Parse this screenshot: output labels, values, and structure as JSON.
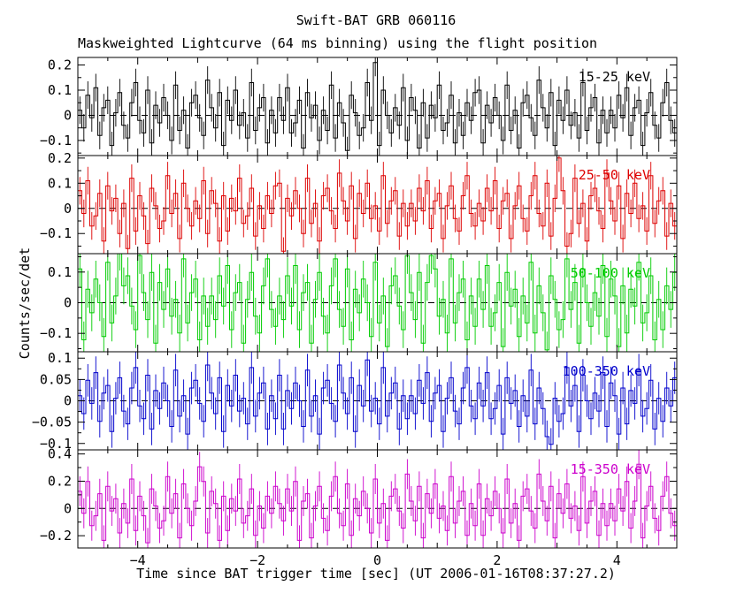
{
  "chart_data": {
    "type": "line",
    "style": "step-histogram-with-errorbars",
    "title": "Swift-BAT GRB 060116",
    "subtitle": "Maskweighted Lightcurve (64 ms binning) using the flight position",
    "xlabel": "Time since BAT trigger time [sec] (UT 2006-01-16T08:37:27.2)",
    "ylabel": "Counts/sec/det",
    "x_range": [
      -5,
      5
    ],
    "bin_seconds": 0.064,
    "x_major_ticks": [
      -4,
      -2,
      0,
      2,
      4
    ],
    "x_minor_step": 0.5,
    "grid": false,
    "legend_position": "inside-right-per-panel",
    "panels": [
      {
        "label": "15-25 keV",
        "color": "#000000",
        "value_scale": 0.01,
        "err": 0.055,
        "ylim": [
          -0.16,
          0.23
        ],
        "yticks": [
          0.2,
          0.1,
          0,
          -0.1
        ],
        "values": [
          2,
          -5,
          8,
          -1,
          11,
          -8,
          3,
          6,
          -12,
          1,
          9,
          -4,
          -9,
          5,
          13,
          -2,
          -7,
          10,
          -11,
          4,
          -3,
          7,
          0,
          -10,
          12,
          -6,
          2,
          -13,
          5,
          8,
          -1,
          -8,
          14,
          3,
          -5,
          9,
          -12,
          6,
          -2,
          10,
          -4,
          1,
          -9,
          13,
          -6,
          3,
          7,
          -11,
          2,
          -7,
          7,
          -2,
          11,
          -7,
          -3,
          6,
          -13,
          9,
          -1,
          4,
          -10,
          2,
          -6,
          12,
          -9,
          5,
          -3,
          -14,
          8,
          1,
          -8,
          -5,
          13,
          -2,
          21,
          -12,
          10,
          0,
          -7,
          3,
          -4,
          11,
          -10,
          7,
          2,
          -13,
          5,
          -9,
          4,
          -1,
          12,
          -6,
          -3,
          8,
          -11,
          1,
          -8,
          5,
          -2,
          9,
          10,
          -11,
          4,
          -3,
          7,
          0,
          -10,
          12,
          -6,
          2,
          -13,
          5,
          8,
          -1,
          -8,
          14,
          3,
          -5,
          9,
          -12,
          6,
          -2,
          10,
          -4,
          1,
          -9,
          13,
          -6,
          3,
          7,
          -11,
          2,
          -7,
          2,
          -5,
          8,
          -1,
          11,
          -8,
          3,
          6,
          -12,
          1,
          9,
          -4,
          -9,
          5,
          13,
          -2,
          -7
        ]
      },
      {
        "label": "25-50 keV",
        "color": "#dd0000",
        "value_scale": 0.01,
        "err": 0.055,
        "ylim": [
          -0.18,
          0.21
        ],
        "yticks": [
          0.2,
          0.1,
          0,
          -0.1
        ],
        "values": [
          7,
          -2,
          11,
          -7,
          -3,
          6,
          -13,
          9,
          -1,
          4,
          -10,
          2,
          -16,
          12,
          -9,
          5,
          -3,
          -14,
          8,
          1,
          -8,
          -5,
          13,
          -2,
          6,
          -12,
          10,
          0,
          -7,
          3,
          -4,
          11,
          -10,
          7,
          2,
          -13,
          5,
          -9,
          4,
          -1,
          12,
          -6,
          -3,
          8,
          -11,
          1,
          -8,
          5,
          -2,
          9,
          10,
          -17,
          4,
          -3,
          7,
          0,
          -10,
          12,
          -6,
          2,
          -13,
          5,
          8,
          -1,
          -8,
          14,
          3,
          -5,
          9,
          -12,
          6,
          -2,
          10,
          -4,
          1,
          -9,
          13,
          -6,
          3,
          7,
          -11,
          2,
          -7,
          2,
          -5,
          8,
          -1,
          11,
          -8,
          3,
          6,
          -12,
          1,
          9,
          -4,
          -9,
          5,
          13,
          -2,
          -7,
          2,
          -5,
          8,
          -1,
          11,
          -8,
          3,
          6,
          -12,
          1,
          9,
          -4,
          -9,
          5,
          13,
          -2,
          -7,
          10,
          -11,
          4,
          20,
          7,
          -15,
          -10,
          12,
          -6,
          2,
          -13,
          5,
          8,
          -1,
          -8,
          14,
          3,
          -5,
          9,
          -12,
          6,
          -2,
          10,
          -4,
          1,
          -9,
          13,
          -6,
          3,
          7,
          -11,
          2,
          -7
        ]
      },
      {
        "label": "50-100 keV",
        "color": "#00cc00",
        "value_scale": 0.011,
        "err": 0.06,
        "ylim": [
          -0.16,
          0.16
        ],
        "yticks": [
          0.1,
          0,
          -0.1
        ],
        "values": [
          10,
          -11,
          4,
          -3,
          7,
          0,
          -10,
          12,
          -6,
          2,
          15,
          5,
          8,
          -1,
          -8,
          14,
          3,
          -5,
          9,
          -12,
          6,
          -2,
          10,
          -4,
          1,
          -9,
          13,
          -6,
          3,
          7,
          -11,
          2,
          -7,
          2,
          -5,
          8,
          -1,
          11,
          -8,
          3,
          6,
          -12,
          1,
          9,
          -4,
          -9,
          5,
          13,
          -2,
          -7,
          2,
          -5,
          8,
          -1,
          11,
          -8,
          3,
          6,
          -12,
          1,
          9,
          -4,
          -9,
          5,
          13,
          -2,
          -7,
          10,
          -11,
          4,
          -3,
          7,
          0,
          -10,
          12,
          -6,
          2,
          -13,
          5,
          8,
          -1,
          -8,
          14,
          3,
          -5,
          9,
          -12,
          6,
          14,
          10,
          -4,
          1,
          -9,
          13,
          -6,
          3,
          7,
          -11,
          2,
          -7,
          7,
          -2,
          11,
          -7,
          -3,
          6,
          -13,
          9,
          -1,
          4,
          -10,
          2,
          -6,
          12,
          -9,
          5,
          -3,
          -14,
          8,
          1,
          -8,
          -5,
          13,
          -2,
          6,
          -12,
          10,
          0,
          -7,
          3,
          -4,
          11,
          -10,
          7,
          2,
          -13,
          5,
          -9,
          4,
          -1,
          12,
          -6,
          -3,
          8,
          -11,
          1,
          -8,
          5,
          -2,
          9
        ]
      },
      {
        "label": "100-350 keV",
        "color": "#0000cc",
        "value_scale": 0.006,
        "err": 0.038,
        "ylim": [
          -0.115,
          0.115
        ],
        "yticks": [
          0.1,
          0.05,
          0,
          -0.05,
          -0.1
        ],
        "values": [
          2,
          -5,
          8,
          -1,
          11,
          -8,
          3,
          6,
          -12,
          1,
          9,
          -4,
          -9,
          5,
          13,
          -2,
          -7,
          10,
          -11,
          4,
          -3,
          7,
          0,
          -10,
          12,
          -6,
          2,
          -13,
          5,
          8,
          -1,
          -8,
          14,
          3,
          -5,
          9,
          -12,
          6,
          -2,
          10,
          -4,
          1,
          -9,
          13,
          -6,
          3,
          7,
          -11,
          2,
          -7,
          10,
          -11,
          4,
          -3,
          7,
          0,
          -10,
          12,
          -6,
          2,
          -13,
          5,
          8,
          -1,
          -8,
          14,
          3,
          -5,
          9,
          -12,
          6,
          -2,
          16,
          -4,
          1,
          -9,
          13,
          -6,
          3,
          7,
          -11,
          2,
          -7,
          2,
          -5,
          8,
          -1,
          11,
          -8,
          3,
          6,
          -12,
          1,
          9,
          -4,
          -9,
          5,
          13,
          -2,
          -7,
          7,
          -2,
          11,
          -7,
          -3,
          6,
          -13,
          9,
          -1,
          4,
          -10,
          2,
          -6,
          12,
          -9,
          5,
          -3,
          -14,
          -17,
          1,
          -8,
          -5,
          13,
          -2,
          6,
          -12,
          10,
          0,
          -7,
          3,
          -4,
          11,
          -10,
          7,
          2,
          -13,
          5,
          -9,
          4,
          -1,
          12,
          -6,
          -3,
          8,
          -11,
          1,
          -8,
          5,
          -2,
          9
        ]
      },
      {
        "label": "15-350 keV",
        "color": "#cc00cc",
        "value_scale": 0.018,
        "err": 0.11,
        "ylim": [
          -0.29,
          0.43
        ],
        "yticks": [
          0.4,
          0.2,
          0,
          -0.2
        ],
        "values": [
          7,
          -2,
          11,
          -7,
          -3,
          6,
          -13,
          9,
          -1,
          4,
          -10,
          2,
          -6,
          12,
          -9,
          5,
          -3,
          -14,
          8,
          1,
          -8,
          -5,
          13,
          -2,
          6,
          -12,
          10,
          0,
          -7,
          3,
          17,
          11,
          -10,
          7,
          2,
          -13,
          5,
          -9,
          4,
          -1,
          12,
          -6,
          -3,
          8,
          -11,
          1,
          -8,
          5,
          -2,
          9,
          2,
          -5,
          8,
          -1,
          11,
          -13,
          3,
          6,
          -12,
          1,
          9,
          -4,
          -9,
          5,
          13,
          -2,
          -7,
          10,
          -11,
          4,
          -3,
          7,
          0,
          -10,
          12,
          -6,
          2,
          -13,
          5,
          8,
          -1,
          -8,
          14,
          3,
          -5,
          9,
          -12,
          6,
          -2,
          10,
          -4,
          1,
          -9,
          13,
          -6,
          3,
          7,
          -11,
          2,
          -7,
          10,
          -11,
          4,
          -3,
          7,
          0,
          -10,
          12,
          -6,
          2,
          -13,
          5,
          8,
          -1,
          -8,
          14,
          3,
          -5,
          9,
          -12,
          6,
          -2,
          10,
          -4,
          1,
          -9,
          13,
          -6,
          3,
          7,
          -11,
          2,
          -7,
          2,
          -5,
          8,
          -1,
          11,
          -8,
          3,
          18,
          -12,
          1,
          9,
          -4,
          -9,
          5,
          13,
          -2,
          -7
        ]
      }
    ]
  }
}
